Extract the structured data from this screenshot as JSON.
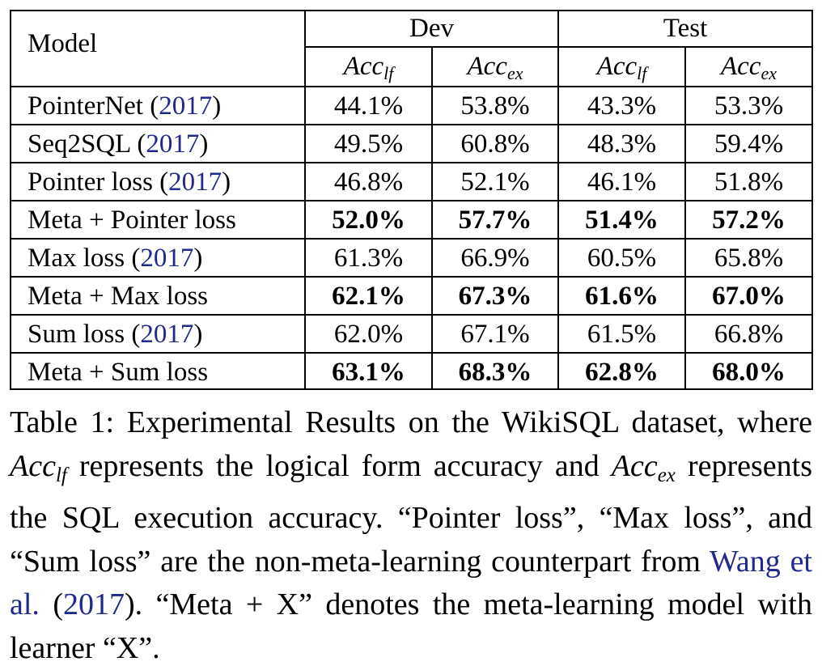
{
  "table": {
    "model_header": "Model",
    "groups": [
      "Dev",
      "Test"
    ],
    "metric_base": "Acc",
    "metric_subs": [
      "lf",
      "ex",
      "lf",
      "ex"
    ],
    "rows": [
      {
        "model": "PointerNet (",
        "cite": "2017",
        "close": ")",
        "values": [
          "44.1%",
          "53.8%",
          "43.3%",
          "53.3%"
        ],
        "bold": false
      },
      {
        "model": "Seq2SQL (",
        "cite": "2017",
        "close": ")",
        "values": [
          "49.5%",
          "60.8%",
          "48.3%",
          "59.4%"
        ],
        "bold": false
      },
      {
        "model": "Pointer loss (",
        "cite": "2017",
        "close": ")",
        "values": [
          "46.8%",
          "52.1%",
          "46.1%",
          "51.8%"
        ],
        "bold": false
      },
      {
        "model": "Meta + Pointer loss",
        "cite": "",
        "close": "",
        "values": [
          "52.0%",
          "57.7%",
          "51.4%",
          "57.2%"
        ],
        "bold": true
      },
      {
        "model": "Max loss (",
        "cite": "2017",
        "close": ")",
        "values": [
          "61.3%",
          "66.9%",
          "60.5%",
          "65.8%"
        ],
        "bold": false
      },
      {
        "model": "Meta + Max loss",
        "cite": "",
        "close": "",
        "values": [
          "62.1%",
          "67.3%",
          "61.6%",
          "67.0%"
        ],
        "bold": true
      },
      {
        "model": "Sum loss (",
        "cite": "2017",
        "close": ")",
        "values": [
          "62.0%",
          "67.1%",
          "61.5%",
          "66.8%"
        ],
        "bold": false
      },
      {
        "model": "Meta + Sum loss",
        "cite": "",
        "close": "",
        "values": [
          "63.1%",
          "68.3%",
          "62.8%",
          "68.0%"
        ],
        "bold": true
      }
    ]
  },
  "caption": {
    "t1": "Table 1: Experimental Results on the WikiSQL dataset, where ",
    "acc": "Acc",
    "sub_lf": "lf",
    "t2": " represents the logical form accuracy and ",
    "sub_ex": "ex",
    "t3": " represents the SQL execution accuracy. “Pointer loss”, “Max loss”, and “Sum loss” are the non-meta-learning counterpart from ",
    "link": "Wang et al.",
    "t4": " (",
    "year": "2017",
    "t5": "). “Meta + X” denotes the meta-learning model with learner “X”."
  }
}
